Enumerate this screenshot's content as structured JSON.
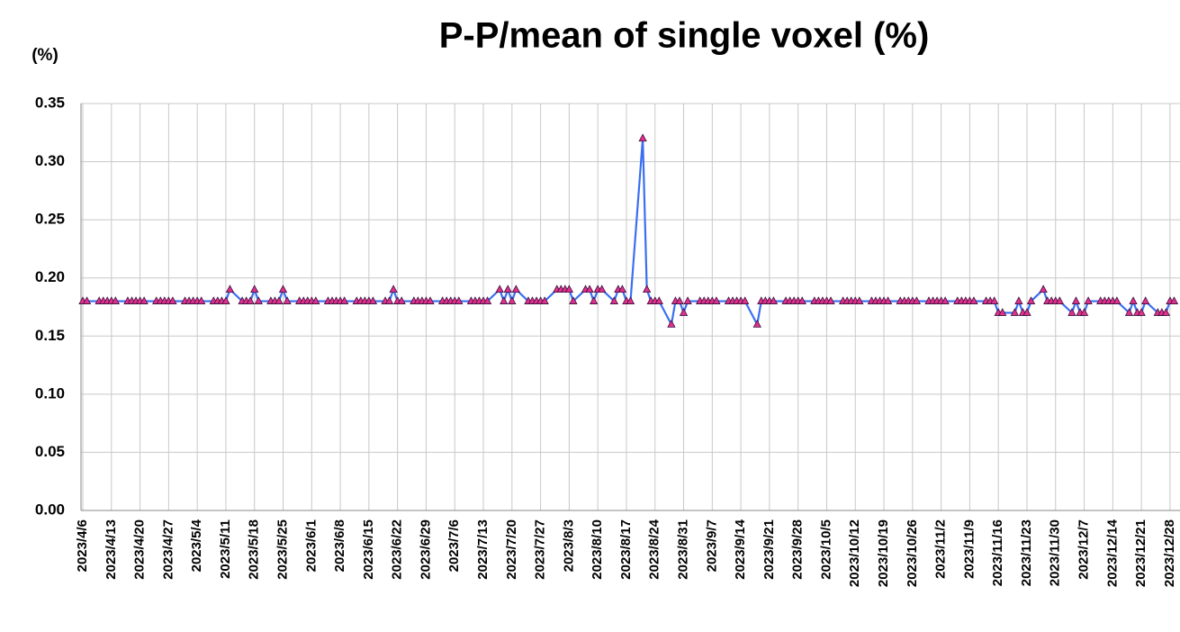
{
  "chart_data": {
    "type": "line",
    "title": "P-P/mean of single voxel (%)",
    "y_label": "(%)",
    "color": "#3b6ff0",
    "marker_color": "#e0308a",
    "grid": true,
    "xlim": [
      "2023/4/6",
      "2023/12/30"
    ],
    "ylim": [
      0,
      0.35
    ],
    "yticks": [
      {
        "value": 0,
        "label": "0.00"
      },
      0.05,
      {
        "value": 0.1,
        "label": "0.10"
      },
      0.15,
      {
        "value": 0.2,
        "label": "0.20"
      },
      0.25,
      {
        "value": 0.3,
        "label": "0.30"
      },
      0.35
    ],
    "xticks": [
      "2023/4/6",
      "2023/4/13",
      "2023/4/20",
      "2023/4/27",
      "2023/5/4",
      "2023/5/11",
      "2023/5/18",
      "2023/5/25",
      "2023/6/1",
      "2023/6/8",
      "2023/6/15",
      "2023/6/22",
      "2023/6/29",
      "2023/7/6",
      "2023/7/13",
      "2023/7/20",
      "2023/7/27",
      "2023/8/3",
      "2023/8/10",
      "2023/8/17",
      "2023/8/24",
      "2023/8/31",
      "2023/9/7",
      "2023/9/14",
      "2023/9/21",
      "2023/9/28",
      "2023/10/5",
      "2023/10/12",
      "2023/10/19",
      "2023/10/26",
      "2023/11/2",
      "2023/11/9",
      "2023/11/16",
      "2023/11/23",
      "2023/11/30",
      "2023/12/7",
      "2023/12/14",
      "2023/12/21",
      "2023/12/28"
    ],
    "x": [
      "2023/4/6",
      "2023/4/7",
      "2023/4/10",
      "2023/4/11",
      "2023/4/12",
      "2023/4/13",
      "2023/4/14",
      "2023/4/17",
      "2023/4/18",
      "2023/4/19",
      "2023/4/20",
      "2023/4/21",
      "2023/4/24",
      "2023/4/25",
      "2023/4/26",
      "2023/4/27",
      "2023/4/28",
      "2023/5/1",
      "2023/5/2",
      "2023/5/3",
      "2023/5/4",
      "2023/5/5",
      "2023/5/8",
      "2023/5/9",
      "2023/5/10",
      "2023/5/11",
      "2023/5/12",
      "2023/5/15",
      "2023/5/16",
      "2023/5/17",
      "2023/5/18",
      "2023/5/19",
      "2023/5/22",
      "2023/5/23",
      "2023/5/24",
      "2023/5/25",
      "2023/5/26",
      "2023/5/29",
      "2023/5/30",
      "2023/5/31",
      "2023/6/1",
      "2023/6/2",
      "2023/6/5",
      "2023/6/6",
      "2023/6/7",
      "2023/6/8",
      "2023/6/9",
      "2023/6/12",
      "2023/6/13",
      "2023/6/14",
      "2023/6/15",
      "2023/6/16",
      "2023/6/19",
      "2023/6/20",
      "2023/6/21",
      "2023/6/22",
      "2023/6/23",
      "2023/6/26",
      "2023/6/27",
      "2023/6/28",
      "2023/6/29",
      "2023/6/30",
      "2023/7/3",
      "2023/7/4",
      "2023/7/5",
      "2023/7/6",
      "2023/7/7",
      "2023/7/10",
      "2023/7/11",
      "2023/7/12",
      "2023/7/13",
      "2023/7/14",
      "2023/7/17",
      "2023/7/18",
      "2023/7/19",
      "2023/7/20",
      "2023/7/21",
      "2023/7/24",
      "2023/7/25",
      "2023/7/26",
      "2023/7/27",
      "2023/7/28",
      "2023/7/31",
      "2023/8/1",
      "2023/8/2",
      "2023/8/3",
      "2023/8/4",
      "2023/8/7",
      "2023/8/8",
      "2023/8/9",
      "2023/8/10",
      "2023/8/11",
      "2023/8/14",
      "2023/8/15",
      "2023/8/16",
      "2023/8/17",
      "2023/8/18",
      "2023/8/21",
      "2023/8/22",
      "2023/8/23",
      "2023/8/24",
      "2023/8/25",
      "2023/8/28",
      "2023/8/29",
      "2023/8/30",
      "2023/8/31",
      "2023/9/1",
      "2023/9/4",
      "2023/9/5",
      "2023/9/6",
      "2023/9/7",
      "2023/9/8",
      "2023/9/11",
      "2023/9/12",
      "2023/9/13",
      "2023/9/14",
      "2023/9/15",
      "2023/9/18",
      "2023/9/19",
      "2023/9/20",
      "2023/9/21",
      "2023/9/22",
      "2023/9/25",
      "2023/9/26",
      "2023/9/27",
      "2023/9/28",
      "2023/9/29",
      "2023/10/2",
      "2023/10/3",
      "2023/10/4",
      "2023/10/5",
      "2023/10/6",
      "2023/10/9",
      "2023/10/10",
      "2023/10/11",
      "2023/10/12",
      "2023/10/13",
      "2023/10/16",
      "2023/10/17",
      "2023/10/18",
      "2023/10/19",
      "2023/10/20",
      "2023/10/23",
      "2023/10/24",
      "2023/10/25",
      "2023/10/26",
      "2023/10/27",
      "2023/10/30",
      "2023/10/31",
      "2023/11/1",
      "2023/11/2",
      "2023/11/3",
      "2023/11/6",
      "2023/11/7",
      "2023/11/8",
      "2023/11/9",
      "2023/11/10",
      "2023/11/13",
      "2023/11/14",
      "2023/11/15",
      "2023/11/16",
      "2023/11/17",
      "2023/11/20",
      "2023/11/21",
      "2023/11/22",
      "2023/11/23",
      "2023/11/24",
      "2023/11/27",
      "2023/11/28",
      "2023/11/29",
      "2023/11/30",
      "2023/12/1",
      "2023/12/4",
      "2023/12/5",
      "2023/12/6",
      "2023/12/7",
      "2023/12/8",
      "2023/12/11",
      "2023/12/12",
      "2023/12/13",
      "2023/12/14",
      "2023/12/15",
      "2023/12/18",
      "2023/12/19",
      "2023/12/20",
      "2023/12/21",
      "2023/12/22",
      "2023/12/25",
      "2023/12/26",
      "2023/12/27",
      "2023/12/28",
      "2023/12/29"
    ],
    "values": [
      0.18,
      0.18,
      0.18,
      0.18,
      0.18,
      0.18,
      0.18,
      0.18,
      0.18,
      0.18,
      0.18,
      0.18,
      0.18,
      0.18,
      0.18,
      0.18,
      0.18,
      0.18,
      0.18,
      0.18,
      0.18,
      0.18,
      0.18,
      0.18,
      0.18,
      0.18,
      0.19,
      0.18,
      0.18,
      0.18,
      0.19,
      0.18,
      0.18,
      0.18,
      0.18,
      0.19,
      0.18,
      0.18,
      0.18,
      0.18,
      0.18,
      0.18,
      0.18,
      0.18,
      0.18,
      0.18,
      0.18,
      0.18,
      0.18,
      0.18,
      0.18,
      0.18,
      0.18,
      0.18,
      0.19,
      0.18,
      0.18,
      0.18,
      0.18,
      0.18,
      0.18,
      0.18,
      0.18,
      0.18,
      0.18,
      0.18,
      0.18,
      0.18,
      0.18,
      0.18,
      0.18,
      0.18,
      0.19,
      0.18,
      0.19,
      0.18,
      0.19,
      0.18,
      0.18,
      0.18,
      0.18,
      0.18,
      0.19,
      0.19,
      0.19,
      0.19,
      0.18,
      0.19,
      0.19,
      0.18,
      0.19,
      0.19,
      0.18,
      0.19,
      0.19,
      0.18,
      0.18,
      0.32,
      0.19,
      0.18,
      0.18,
      0.18,
      0.16,
      0.18,
      0.18,
      0.17,
      0.18,
      0.18,
      0.18,
      0.18,
      0.18,
      0.18,
      0.18,
      0.18,
      0.18,
      0.18,
      0.18,
      0.16,
      0.18,
      0.18,
      0.18,
      0.18,
      0.18,
      0.18,
      0.18,
      0.18,
      0.18,
      0.18,
      0.18,
      0.18,
      0.18,
      0.18,
      0.18,
      0.18,
      0.18,
      0.18,
      0.18,
      0.18,
      0.18,
      0.18,
      0.18,
      0.18,
      0.18,
      0.18,
      0.18,
      0.18,
      0.18,
      0.18,
      0.18,
      0.18,
      0.18,
      0.18,
      0.18,
      0.18,
      0.18,
      0.18,
      0.18,
      0.18,
      0.18,
      0.18,
      0.17,
      0.17,
      0.17,
      0.18,
      0.17,
      0.17,
      0.18,
      0.19,
      0.18,
      0.18,
      0.18,
      0.18,
      0.17,
      0.18,
      0.17,
      0.17,
      0.18,
      0.18,
      0.18,
      0.18,
      0.18,
      0.18,
      0.17,
      0.18,
      0.17,
      0.17,
      0.18,
      0.17,
      0.17,
      0.17,
      0.18,
      0.18
    ]
  }
}
